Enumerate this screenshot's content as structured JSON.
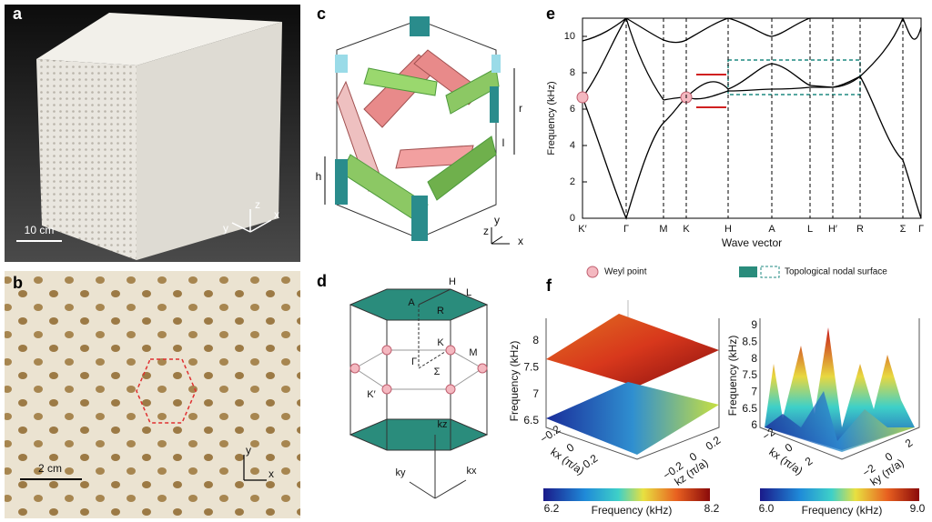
{
  "panels": {
    "a": {
      "label": "a",
      "scale_bar": "10 cm",
      "axes": [
        "z",
        "y",
        "x"
      ]
    },
    "b": {
      "label": "b",
      "scale_bar": "2 cm",
      "axes": [
        "y",
        "x"
      ]
    },
    "c": {
      "label": "c",
      "dimensions": [
        "r",
        "h",
        "l"
      ],
      "axes": [
        "y",
        "z",
        "x"
      ]
    },
    "d": {
      "label": "d",
      "points": [
        "H",
        "L",
        "A",
        "R",
        "K",
        "M",
        "Γ",
        "Σ",
        "K′"
      ],
      "axes": [
        "kz",
        "ky",
        "kx"
      ]
    },
    "e": {
      "label": "e",
      "y_label": "Frequency (kHz)",
      "x_label": "Wave vector",
      "y_ticks": [
        "0",
        "2",
        "4",
        "6",
        "8",
        "10"
      ],
      "x_ticks": [
        "K′",
        "Γ",
        "M",
        "K",
        "H",
        "A",
        "L",
        "H′",
        "R",
        "Σ",
        "Γ"
      ]
    },
    "f": {
      "label": "f",
      "legend": [
        "Weyl point",
        "Topological nodal surface"
      ],
      "left": {
        "z_label": "Frequency (kHz)",
        "z_ticks": [
          "6.5",
          "7",
          "7.5",
          "8"
        ],
        "x_ticks": [
          "−0.2",
          "0",
          "0.2"
        ],
        "x_label": "kx (π/a)",
        "y_ticks": [
          "−0.2",
          "0",
          "0.2"
        ],
        "y_label": "kz (π/a)",
        "colorbar": {
          "min": "6.2",
          "max": "8.2",
          "label": "Frequency (kHz)"
        }
      },
      "right": {
        "z_label": "Frequency (kHz)",
        "z_ticks": [
          "6",
          "6.5",
          "7",
          "7.5",
          "8",
          "8.5",
          "9"
        ],
        "x_ticks": [
          "−2",
          "0",
          "2"
        ],
        "x_label": "kx (π/a)",
        "y_ticks": [
          "−2",
          "0",
          "2"
        ],
        "y_label": "ky (π/a)",
        "colorbar": {
          "min": "6.0",
          "max": "9.0",
          "label": "Frequency (kHz)"
        }
      }
    }
  }
}
